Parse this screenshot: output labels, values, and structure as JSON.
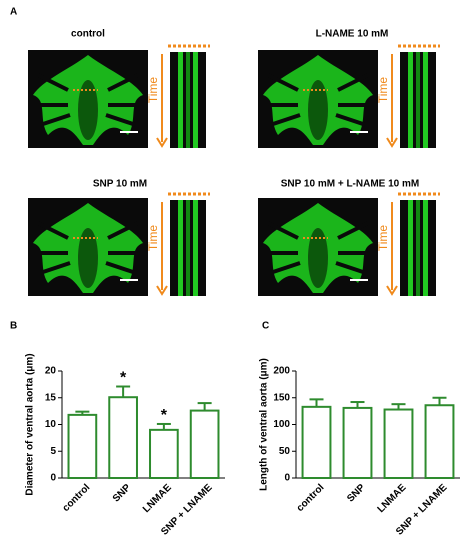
{
  "panel_labels": [
    "A",
    "B",
    "C"
  ],
  "image_panels": [
    {
      "title": "control",
      "time_label": "Time"
    },
    {
      "title": "L-NAME 10 mM",
      "time_label": "Time"
    },
    {
      "title": "SNP 10 mM",
      "time_label": "Time"
    },
    {
      "title": "SNP 10 mM + L-NAME 10 mM",
      "time_label": "Time"
    }
  ],
  "chart_data": [
    {
      "type": "bar",
      "y_label": "Diameter of ventral aorta (μm)",
      "categories": [
        "control",
        "SNP",
        "LNMAE",
        "SNP + LNAME"
      ],
      "values": [
        11.8,
        15.1,
        9.0,
        12.6
      ],
      "errors": [
        0.6,
        2.0,
        1.1,
        1.4
      ],
      "significance": [
        null,
        "*",
        "*",
        null
      ],
      "color": "#2e8b2e",
      "ylim": [
        0,
        20
      ],
      "yticks": [
        0,
        5,
        10,
        15,
        20
      ]
    },
    {
      "type": "bar",
      "y_label": "Length of ventral aorta (μm)",
      "categories": [
        "control",
        "SNP",
        "LNMAE",
        "SNP + LNAME"
      ],
      "values": [
        133,
        131,
        128,
        136
      ],
      "errors": [
        14,
        11,
        10,
        14
      ],
      "color": "#2e8b2e",
      "ylim": [
        0,
        200
      ],
      "yticks": [
        0,
        50,
        100,
        150,
        200
      ]
    }
  ]
}
